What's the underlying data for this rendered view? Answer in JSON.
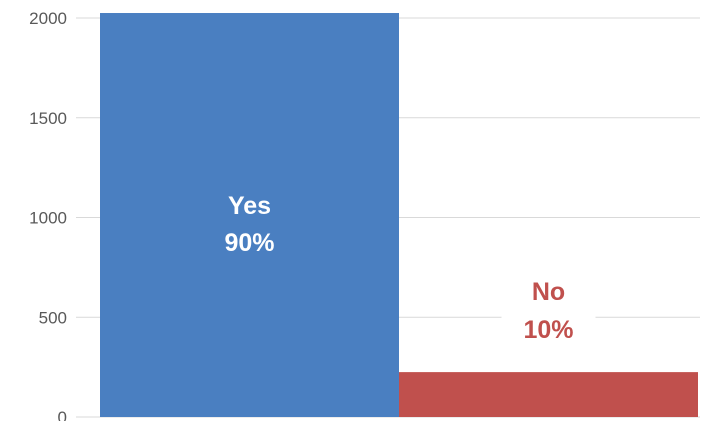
{
  "chart_data": {
    "type": "bar",
    "categories": [
      "Yes",
      "No"
    ],
    "values": [
      2025,
      225
    ],
    "data_labels": [
      {
        "category": "Yes",
        "percent": "90%"
      },
      {
        "category": "No",
        "percent": "10%"
      }
    ],
    "bar_colors": [
      "#4a7fc1",
      "#c0504d"
    ],
    "label_colors": [
      "#ffffff",
      "#c0504d"
    ],
    "ylim": [
      0,
      2000
    ],
    "yticks": [
      "0",
      "500",
      "1000",
      "1500",
      "2000"
    ],
    "ytick_values": [
      0,
      500,
      1000,
      1500,
      2000
    ],
    "grid": true,
    "grid_color": "#d9d9d9",
    "title": "",
    "xlabel": "",
    "ylabel": ""
  }
}
